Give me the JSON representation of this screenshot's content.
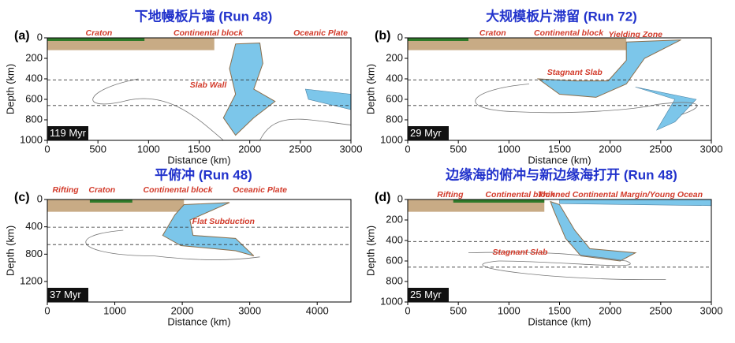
{
  "panels": [
    {
      "letter": "(a)",
      "title": "下地幔板片墙 (Run 48)",
      "time": "119 Myr",
      "x_label": "Distance (km)",
      "y_label": "Depth (km)",
      "xlim": [
        0,
        3000
      ],
      "ylim": [
        0,
        1000
      ],
      "xticks": [
        0,
        500,
        1000,
        1500,
        2000,
        2500,
        3000
      ],
      "yticks": [
        0,
        200,
        400,
        600,
        800,
        1000
      ],
      "annotations": [
        "Craton",
        "Continental block",
        "Oceanic Plate",
        "Slab Wall"
      ]
    },
    {
      "letter": "(b)",
      "title": "大规模板片滞留 (Run 72)",
      "time": "29 Myr",
      "x_label": "Distance (km)",
      "y_label": "Depth (km)",
      "xlim": [
        0,
        3000
      ],
      "ylim": [
        0,
        1000
      ],
      "xticks": [
        0,
        500,
        1000,
        1500,
        2000,
        2500,
        3000
      ],
      "yticks": [
        0,
        200,
        400,
        600,
        800,
        1000
      ],
      "annotations": [
        "Craton",
        "Continental block",
        "Yielding Zone",
        "Stagnant Slab"
      ]
    },
    {
      "letter": "(c)",
      "title": "平俯冲 (Run 48)",
      "time": "37 Myr",
      "x_label": "Distance (km)",
      "y_label": "Depth (km)",
      "xlim": [
        0,
        4500
      ],
      "ylim": [
        0,
        1500
      ],
      "xticks": [
        0,
        1000,
        2000,
        3000,
        4000
      ],
      "yticks": [
        0,
        400,
        800,
        1200
      ],
      "annotations": [
        "Rifting",
        "Craton",
        "Continental block",
        "Oceanic Plate",
        "Flat Subduction"
      ]
    },
    {
      "letter": "(d)",
      "title": "边缘海的俯冲与新边缘海打开 (Run 48)",
      "time": "25 Myr",
      "x_label": "Distance (km)",
      "y_label": "Depth (km)",
      "xlim": [
        0,
        3000
      ],
      "ylim": [
        0,
        1000
      ],
      "xticks": [
        0,
        500,
        1000,
        1500,
        2000,
        2500,
        3000
      ],
      "yticks": [
        0,
        200,
        400,
        600,
        800,
        1000
      ],
      "annotations": [
        "Rifting",
        "Continental block",
        "Thinned Continental Margin/Young Ocean",
        "Stagnant Slab"
      ]
    }
  ]
}
